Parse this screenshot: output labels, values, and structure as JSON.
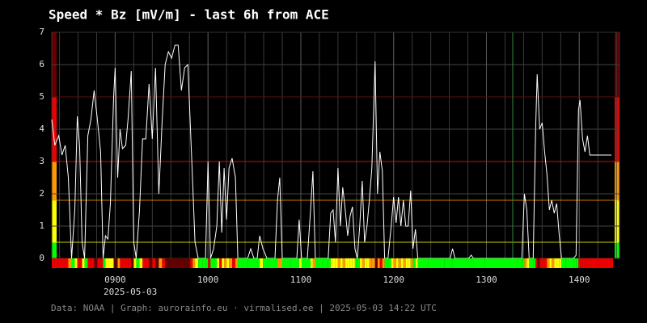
{
  "chart_data": {
    "type": "line",
    "title": "Speed * Bz [mV/m] - last 6h from ACE",
    "date_label": "2025-05-03",
    "footer": "Data: NOAA | Graph: aurorainfo.eu · virmalised.ee | 2025-05-03 14:22 UTC",
    "color": "#ffffff",
    "x": [
      19,
      21,
      23.5,
      25.6,
      27.7,
      29.7,
      31.8,
      33.9,
      35.5,
      37,
      38.6,
      40.2,
      42.3,
      44.3,
      46.4,
      48.5,
      50.6,
      52.2,
      53.7,
      55.3,
      56.9,
      59,
      60,
      61.6,
      63.1,
      64.7,
      66.8,
      68.3,
      70.4,
      72,
      73.6,
      75.7,
      77.7,
      79.8,
      81.9,
      84,
      86.1,
      88.2,
      90.3,
      92.3,
      94.4,
      96.5,
      98.6,
      100.7,
      102.8,
      104.9,
      107,
      108.5,
      110.1,
      111.6,
      113.7,
      116.3,
      118.4,
      120,
      121.6,
      123.6,
      125.7,
      127.3,
      128.9,
      130.4,
      132,
      133.6,
      135.6,
      137.7,
      139.3,
      142.4,
      145.6,
      147.6,
      149.7,
      151.8,
      153.4,
      155.5,
      158.1,
      163.3,
      164.9,
      166.4,
      168,
      173.7,
      177.4,
      178.9,
      180.5,
      184.2,
      186.3,
      187.8,
      189.4,
      194.6,
      197.7,
      199.3,
      200.9,
      202.4,
      204,
      205.6,
      207.1,
      208.7,
      210.3,
      211.8,
      213.4,
      215,
      216.5,
      218.1,
      219.7,
      221.2,
      222.8,
      224.3,
      225.9,
      228,
      229.6,
      231.1,
      232.7,
      234.2,
      236.3,
      238.4,
      240,
      241.6,
      243.1,
      244.7,
      246.3,
      247.8,
      249.4,
      251,
      252.5,
      254.1,
      255.6,
      262.4,
      272.9,
      276.5,
      278.1,
      279.6,
      288.5,
      290.1,
      291.6,
      298.9,
      309.4,
      319.8,
      322.9,
      324.5,
      326.1,
      327.6,
      330.2,
      331.8,
      332.8,
      334.4,
      336,
      337.6,
      339.1,
      340.7,
      342.2,
      343.8,
      345.4,
      346.9,
      348.5,
      351.1,
      356.3,
      357.9,
      359.5,
      360.5,
      362.1,
      363.7,
      365.3,
      366.8,
      372,
      380.8
    ],
    "values": [
      4.3,
      3.5,
      3.8,
      3.2,
      3.5,
      2.5,
      0,
      1.5,
      4.4,
      3.5,
      0.5,
      0,
      3.8,
      4.3,
      5.2,
      4.3,
      3.3,
      0,
      0.7,
      0.6,
      1.7,
      5,
      5.9,
      2.5,
      4,
      3.4,
      3.5,
      4.3,
      5.8,
      0.5,
      0,
      1.5,
      3.7,
      3.7,
      5.4,
      3.7,
      5.9,
      2,
      4.2,
      6,
      6.4,
      6.2,
      6.6,
      6.6,
      5.2,
      5.9,
      6,
      4.2,
      2.3,
      0.5,
      0,
      0,
      0,
      3,
      0,
      0.3,
      1,
      3,
      0.8,
      2.8,
      1.2,
      2.8,
      3.1,
      2.5,
      0,
      0,
      0,
      0.3,
      0,
      0,
      0.7,
      0.3,
      0,
      0,
      1.8,
      2.5,
      0,
      0,
      0,
      1.2,
      0,
      0,
      1.5,
      2.7,
      0,
      0,
      0,
      1.4,
      1.5,
      0.5,
      2.8,
      1,
      2.2,
      1.5,
      0.7,
      1.3,
      1.6,
      0.3,
      0,
      1,
      2.4,
      0.5,
      1,
      1.8,
      2.8,
      6.1,
      2,
      3.3,
      2.7,
      0,
      0,
      1,
      1.9,
      1.1,
      1.9,
      1,
      1.8,
      1,
      1,
      2.1,
      0.3,
      0.9,
      0,
      0,
      0,
      0,
      0.3,
      0,
      0,
      0.1,
      0,
      0,
      0,
      0,
      0,
      2,
      1.5,
      0,
      0,
      4,
      5.7,
      4,
      4.2,
      3.3,
      2.6,
      1.5,
      1.8,
      1.4,
      1.7,
      0.8,
      0,
      0,
      0,
      0.1,
      4.6,
      4.9,
      3.7,
      3.3,
      3.8,
      3.2,
      3.2,
      3.2
    ],
    "xlim": [
      19,
      386
    ],
    "xticks": [
      {
        "value": 60,
        "label": "0900"
      },
      {
        "value": 120,
        "label": "1000"
      },
      {
        "value": 180,
        "label": "1100"
      },
      {
        "value": 240,
        "label": "1200"
      },
      {
        "value": 300,
        "label": "1300"
      },
      {
        "value": 360,
        "label": "1400"
      }
    ],
    "xgrid_minor": 5,
    "ylim": [
      0,
      7
    ],
    "yticks": [
      0,
      1,
      2,
      3,
      4,
      5,
      6,
      7
    ],
    "grid": true,
    "levels": [
      0.5,
      1.8,
      3,
      5
    ],
    "level_colors": [
      "#00ff00",
      "#ffff00",
      "#ff9900",
      "#ee0000",
      "#660000"
    ],
    "vline": {
      "x": 317,
      "color": "#2e8b3e"
    }
  }
}
